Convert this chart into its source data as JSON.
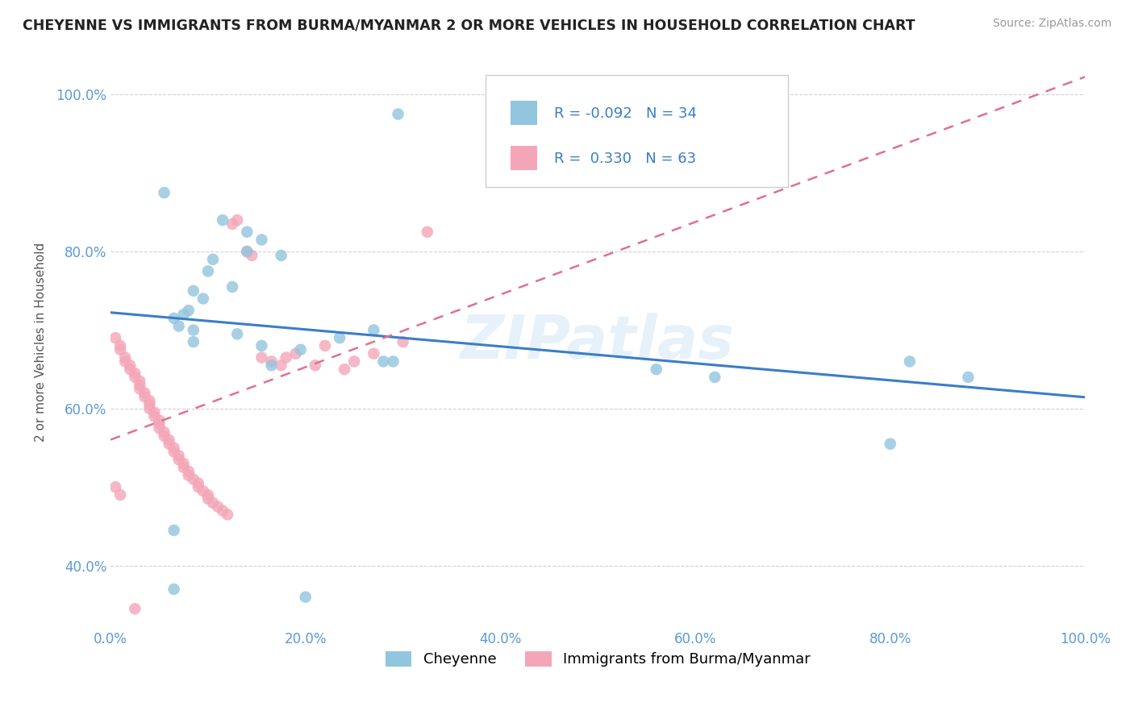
{
  "title": "CHEYENNE VS IMMIGRANTS FROM BURMA/MYANMAR 2 OR MORE VEHICLES IN HOUSEHOLD CORRELATION CHART",
  "source": "Source: ZipAtlas.com",
  "ylabel": "2 or more Vehicles in Household",
  "legend_label_blue": "Cheyenne",
  "legend_label_pink": "Immigrants from Burma/Myanmar",
  "R_blue": -0.092,
  "N_blue": 34,
  "R_pink": 0.33,
  "N_pink": 63,
  "blue_color": "#92c5de",
  "pink_color": "#f4a6b8",
  "blue_line_color": "#3a7dc9",
  "pink_line_color": "#e07090",
  "watermark": "ZIPatlas",
  "xlim": [
    0.0,
    1.0
  ],
  "ylim": [
    0.32,
    1.05
  ],
  "blue_scatter_x": [
    0.295,
    0.055,
    0.115,
    0.14,
    0.155,
    0.14,
    0.175,
    0.105,
    0.1,
    0.125,
    0.085,
    0.095,
    0.08,
    0.075,
    0.065,
    0.07,
    0.085,
    0.13,
    0.085,
    0.235,
    0.27,
    0.155,
    0.195,
    0.165,
    0.29,
    0.28,
    0.56,
    0.62,
    0.82,
    0.8,
    0.88,
    0.065,
    0.065,
    0.2
  ],
  "blue_scatter_y": [
    0.975,
    0.875,
    0.84,
    0.825,
    0.815,
    0.8,
    0.795,
    0.79,
    0.775,
    0.755,
    0.75,
    0.74,
    0.725,
    0.72,
    0.715,
    0.705,
    0.7,
    0.695,
    0.685,
    0.69,
    0.7,
    0.68,
    0.675,
    0.655,
    0.66,
    0.66,
    0.65,
    0.64,
    0.66,
    0.555,
    0.64,
    0.445,
    0.37,
    0.36
  ],
  "pink_scatter_x": [
    0.005,
    0.01,
    0.01,
    0.015,
    0.015,
    0.02,
    0.02,
    0.025,
    0.025,
    0.03,
    0.03,
    0.03,
    0.035,
    0.035,
    0.04,
    0.04,
    0.04,
    0.045,
    0.045,
    0.05,
    0.05,
    0.05,
    0.055,
    0.055,
    0.06,
    0.06,
    0.065,
    0.065,
    0.07,
    0.07,
    0.075,
    0.075,
    0.08,
    0.08,
    0.085,
    0.09,
    0.09,
    0.095,
    0.1,
    0.1,
    0.105,
    0.11,
    0.115,
    0.12,
    0.125,
    0.13,
    0.14,
    0.145,
    0.155,
    0.165,
    0.175,
    0.18,
    0.19,
    0.21,
    0.22,
    0.24,
    0.25,
    0.27,
    0.3,
    0.325,
    0.005,
    0.01,
    0.025
  ],
  "pink_scatter_y": [
    0.69,
    0.68,
    0.675,
    0.665,
    0.66,
    0.655,
    0.65,
    0.645,
    0.64,
    0.635,
    0.63,
    0.625,
    0.62,
    0.615,
    0.61,
    0.605,
    0.6,
    0.595,
    0.59,
    0.585,
    0.58,
    0.575,
    0.57,
    0.565,
    0.56,
    0.555,
    0.55,
    0.545,
    0.54,
    0.535,
    0.53,
    0.525,
    0.52,
    0.515,
    0.51,
    0.505,
    0.5,
    0.495,
    0.49,
    0.485,
    0.48,
    0.475,
    0.47,
    0.465,
    0.835,
    0.84,
    0.8,
    0.795,
    0.665,
    0.66,
    0.655,
    0.665,
    0.67,
    0.655,
    0.68,
    0.65,
    0.66,
    0.67,
    0.685,
    0.825,
    0.5,
    0.49,
    0.345
  ],
  "xtick_labels": [
    "0.0%",
    "20.0%",
    "40.0%",
    "60.0%",
    "80.0%",
    "100.0%"
  ],
  "xtick_positions": [
    0.0,
    0.2,
    0.4,
    0.6,
    0.8,
    1.0
  ],
  "ytick_labels": [
    "40.0%",
    "60.0%",
    "80.0%",
    "100.0%"
  ],
  "ytick_positions": [
    0.4,
    0.6,
    0.8,
    1.0
  ]
}
